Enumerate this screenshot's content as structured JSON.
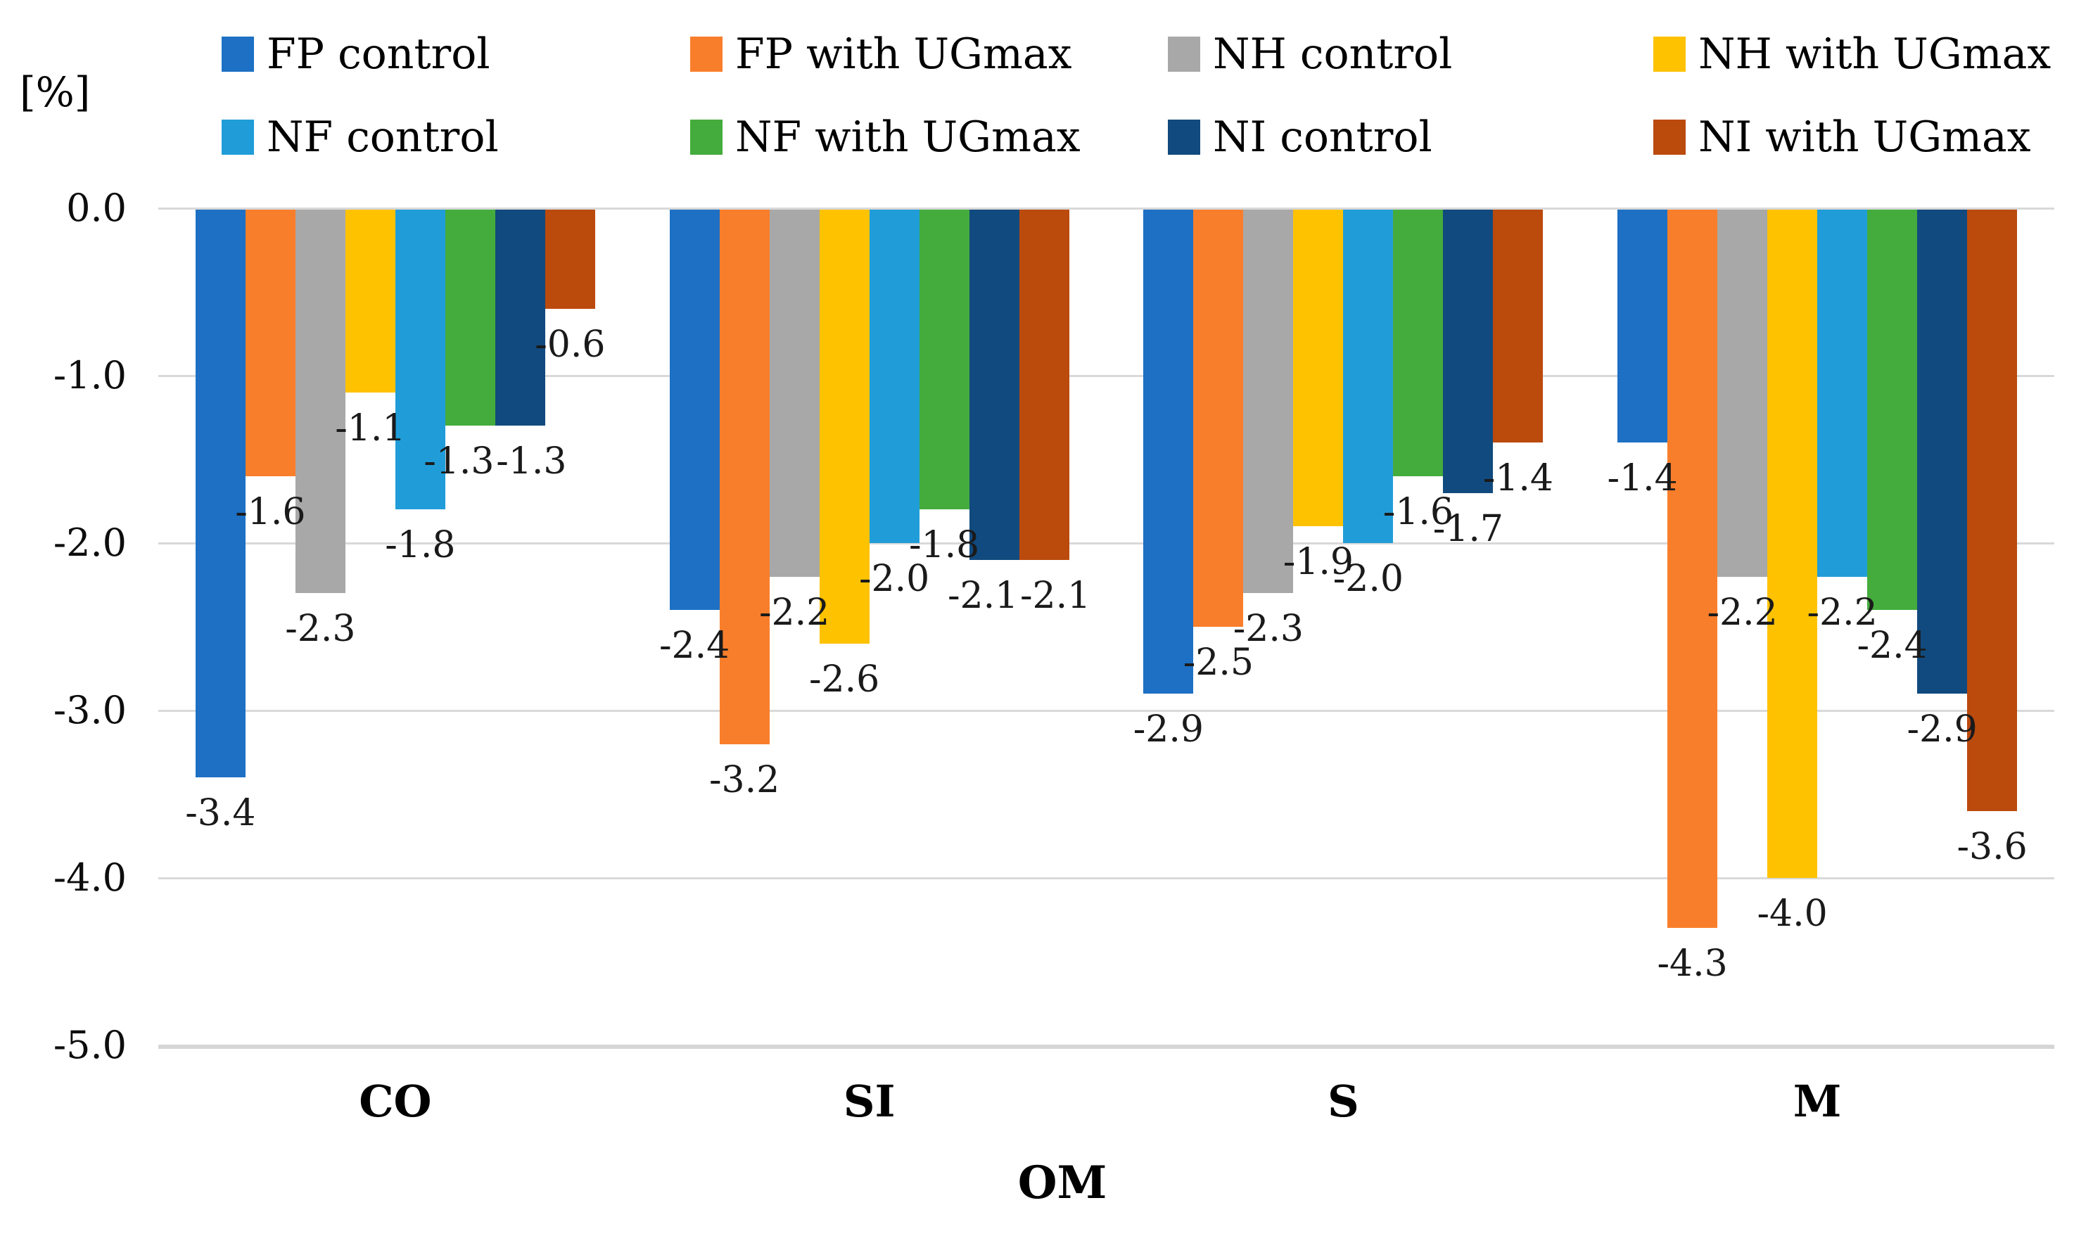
{
  "chart_data": {
    "type": "bar",
    "title": "",
    "ylabel": "[%]",
    "xlabel": "OM",
    "categories": [
      "CO",
      "SI",
      "S",
      "M"
    ],
    "series": [
      {
        "name": "FP control",
        "color": "#1D70C4",
        "values": [
          -3.4,
          -2.4,
          -2.9,
          -1.4
        ]
      },
      {
        "name": "FP with UGmax",
        "color": "#F97E2B",
        "values": [
          -1.6,
          -3.2,
          -2.5,
          -4.3
        ]
      },
      {
        "name": "NH control",
        "color": "#A8A8A8",
        "values": [
          -2.3,
          -2.2,
          -2.3,
          -2.2
        ]
      },
      {
        "name": "NH with UGmax",
        "color": "#FFC200",
        "values": [
          -1.1,
          -2.6,
          -1.9,
          -4.0
        ]
      },
      {
        "name": "NF control",
        "color": "#209DD8",
        "values": [
          -1.8,
          -2.0,
          -2.0,
          -2.2
        ]
      },
      {
        "name": "NF with UGmax",
        "color": "#44AC3C",
        "values": [
          -1.3,
          -1.8,
          -1.6,
          -2.4
        ]
      },
      {
        "name": "NI control",
        "color": "#114A7E",
        "values": [
          -1.3,
          -2.1,
          -1.7,
          -2.9
        ]
      },
      {
        "name": "NI with UGmax",
        "color": "#BB4A0D",
        "values": [
          -0.6,
          -2.1,
          -1.4,
          -3.6
        ]
      }
    ],
    "ylim": [
      -5.0,
      0.0
    ],
    "yticks": [
      "0.0",
      "-1.0",
      "-2.0",
      "-3.0",
      "-4.0",
      "-5.0"
    ],
    "grid": true,
    "data_labels": true,
    "legend_position": "top",
    "legend_rows": [
      [
        "FP control",
        "FP with UGmax",
        "NH control",
        "NH with UGmax"
      ],
      [
        "NF control",
        "NF with UGmax",
        "NI control",
        "NI with UGmax"
      ]
    ]
  },
  "colors": {
    "background": "#FFFFFF",
    "gridline": "#D9D9D9",
    "tick_text": "#0D0D0D",
    "data_label_text": "#1A1A1A"
  }
}
